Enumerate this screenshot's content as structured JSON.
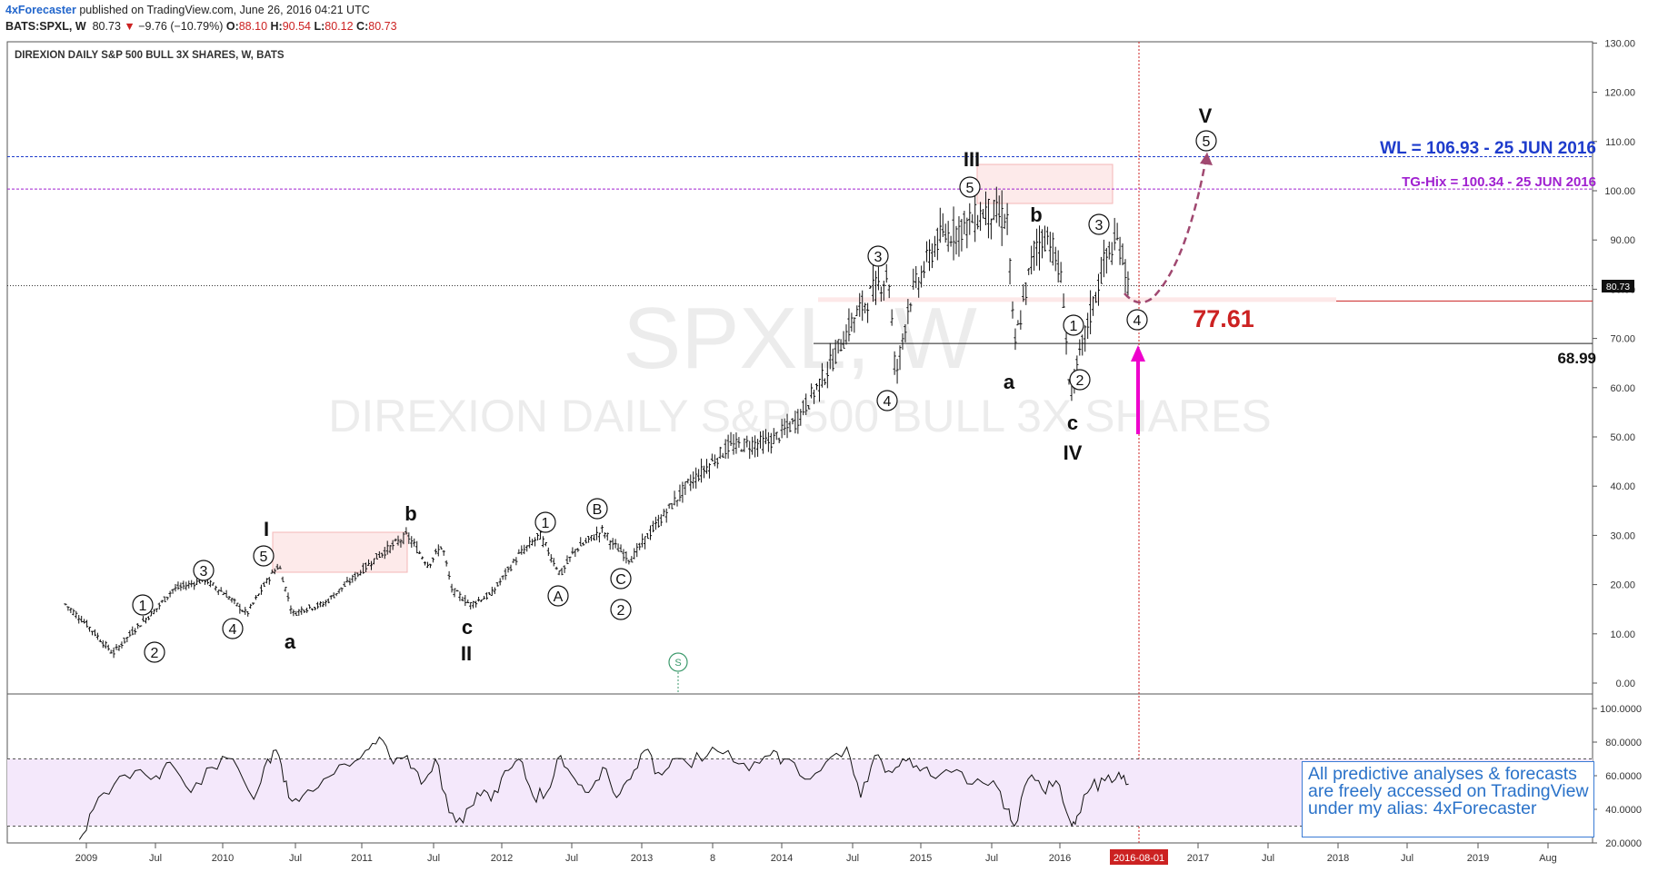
{
  "header": {
    "author": "4xForecaster",
    "published_text": "published on TradingView.com, June 26, 2016 04:21 UTC",
    "symbol": "BATS:SPXL, W",
    "last": "80.73",
    "change_arrow": "▼",
    "change": "−9.76 (−10.79%)",
    "o_label": "O:",
    "o": "88.10",
    "h_label": "H:",
    "h": "90.54",
    "l_label": "L:",
    "l": "80.12",
    "c_label": "C:",
    "c": "80.73"
  },
  "panel": {
    "title": "DIREXION DAILY S&P 500 BULL 3X SHARES, W, BATS",
    "watermark_symbol": "SPXL, W",
    "watermark_name": "DIREXION DAILY S&P 500 BULL 3X SHARES"
  },
  "levels": {
    "wl_label": "WL = 106.93 - 25 JUN 2016",
    "tg_label": "TG-Hix = 100.34 - 25 JUN 2016",
    "support_label": "77.61",
    "low_label": "68.99",
    "price_tag": "80.73",
    "date_tag": "2016-08-01"
  },
  "colors": {
    "wl": "#1e3ccc",
    "tg": "#a020d0",
    "support": "#cc2222",
    "arrow": "#ee00cc",
    "forecast": "#a04870",
    "rsi_fill": "#f4e8fb",
    "note": "#2a72c9"
  },
  "note": {
    "line1": "All predictive analyses & forecasts",
    "line2": "are freely accessed on TradingView",
    "line3": "under my alias: 4xForecaster"
  },
  "chart_data": [
    {
      "type": "bar",
      "subtype": "ohlc-weekly",
      "symbol": "BATS:SPXL",
      "x_ticks": [
        "2009",
        "Jul",
        "2010",
        "Jul",
        "2011",
        "Jul",
        "2012",
        "Jul",
        "2013",
        "8",
        "2014",
        "Jul",
        "2015",
        "Jul",
        "2016",
        "2017",
        "Jul",
        "2018",
        "Jul",
        "2019",
        "Aug"
      ],
      "y_ticks": [
        "130.00",
        "120.00",
        "110.00",
        "100.00",
        "90.00",
        "80.00",
        "70.00",
        "60.00",
        "50.00",
        "40.00",
        "30.00",
        "20.00",
        "10.00",
        "0.00"
      ],
      "ylim": [
        0,
        130
      ],
      "x": [
        2008.85,
        2009.0,
        2009.19,
        2009.35,
        2009.5,
        2009.62,
        2009.85,
        2010.0,
        2010.15,
        2010.3,
        2010.38,
        2010.48,
        2010.55,
        2010.7,
        2010.9,
        2011.1,
        2011.3,
        2011.35,
        2011.45,
        2011.55,
        2011.62,
        2011.75,
        2011.9,
        2012.1,
        2012.25,
        2012.4,
        2012.5,
        2012.7,
        2012.78,
        2012.9,
        2013.0,
        2013.3,
        2013.6,
        2013.9,
        2014.08,
        2014.3,
        2014.5,
        2014.65,
        2014.75,
        2014.8,
        2014.9,
        2015.1,
        2015.3,
        2015.45,
        2015.6,
        2015.65,
        2015.8,
        2015.9,
        2016.0,
        2016.05,
        2016.15,
        2016.3,
        2016.4,
        2016.47
      ],
      "close": [
        16,
        12,
        6,
        11,
        15,
        19,
        21,
        18,
        14,
        21,
        24,
        14,
        15,
        16,
        21,
        26,
        30,
        28,
        24,
        28,
        19,
        16,
        18,
        26,
        30,
        22,
        27,
        31,
        28,
        25,
        29,
        40,
        48,
        49,
        53,
        63,
        74,
        80,
        83,
        62,
        78,
        90,
        93,
        96,
        94,
        68,
        89,
        91,
        80,
        58,
        70,
        86,
        90,
        80.73
      ],
      "last_close": 80.73,
      "horizontal_levels": [
        {
          "label": "WL = 106.93 - 25 JUN 2016",
          "value": 106.93
        },
        {
          "label": "TG-Hix = 100.34 - 25 JUN 2016",
          "value": 100.34
        },
        {
          "label": "77.61",
          "value": 77.61
        },
        {
          "label": "68.99",
          "value": 68.99
        }
      ],
      "wave_labels": [
        "1",
        "2",
        "3",
        "4",
        "5",
        "I",
        "a",
        "b",
        "c",
        "II",
        "1",
        "A",
        "B",
        "C",
        "2",
        "3",
        "4",
        "5",
        "III",
        "a",
        "b",
        "c",
        "IV",
        "1",
        "2",
        "3",
        "4",
        "5",
        "V"
      ]
    },
    {
      "type": "line",
      "name": "RSI",
      "y_ticks": [
        "100.0000",
        "80.0000",
        "60.0000",
        "40.0000",
        "20.0000"
      ],
      "ylim": [
        20,
        100
      ],
      "band": [
        30,
        70
      ],
      "x": [
        2008.95,
        2009.05,
        2009.2,
        2009.35,
        2009.5,
        2009.6,
        2009.75,
        2009.9,
        2010.05,
        2010.2,
        2010.3,
        2010.38,
        2010.45,
        2010.55,
        2010.7,
        2010.85,
        2011.0,
        2011.1,
        2011.2,
        2011.3,
        2011.4,
        2011.5,
        2011.6,
        2011.7,
        2011.8,
        2011.9,
        2012.0,
        2012.1,
        2012.2,
        2012.3,
        2012.4,
        2012.5,
        2012.6,
        2012.7,
        2012.8,
        2012.9,
        2013.0,
        2013.1,
        2013.2,
        2013.3,
        2013.45,
        2013.6,
        2013.75,
        2013.9,
        2014.0,
        2014.15,
        2014.3,
        2014.45,
        2014.55,
        2014.65,
        2014.75,
        2014.85,
        2014.95,
        2015.05,
        2015.2,
        2015.35,
        2015.5,
        2015.6,
        2015.65,
        2015.75,
        2015.85,
        2015.95,
        2016.05,
        2016.1,
        2016.2,
        2016.3,
        2016.4,
        2016.47
      ],
      "values": [
        22,
        40,
        55,
        63,
        60,
        68,
        50,
        65,
        70,
        46,
        70,
        72,
        47,
        48,
        58,
        67,
        75,
        83,
        67,
        72,
        55,
        70,
        38,
        32,
        50,
        45,
        63,
        70,
        48,
        50,
        72,
        58,
        50,
        65,
        47,
        58,
        75,
        62,
        70,
        68,
        72,
        75,
        63,
        72,
        70,
        58,
        68,
        77,
        47,
        72,
        63,
        70,
        66,
        60,
        62,
        55,
        57,
        40,
        30,
        58,
        52,
        57,
        33,
        36,
        53,
        57,
        62,
        55
      ]
    }
  ]
}
